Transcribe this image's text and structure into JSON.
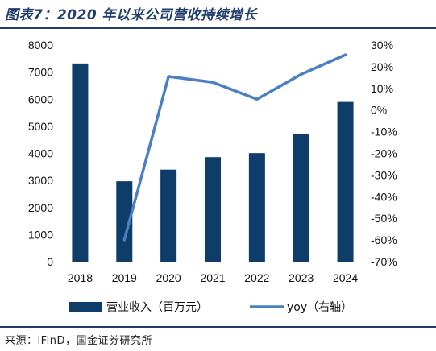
{
  "header": {
    "title": "图表7：2020 年以来公司营收持续增长"
  },
  "footer": {
    "source": "来源：iFinD，国金证券研究所"
  },
  "colors": {
    "bar": "#0e3d6a",
    "line": "#4a80c2",
    "rule": "#1f3e6b"
  },
  "chart_data": {
    "type": "bar",
    "categories": [
      "2018",
      "2019",
      "2020",
      "2021",
      "2022",
      "2023",
      "2024"
    ],
    "series": [
      {
        "name": "营业收入（百万元）",
        "type": "bar",
        "axis": "left",
        "values": [
          7320,
          2970,
          3400,
          3860,
          4010,
          4700,
          5900
        ]
      },
      {
        "name": "yoy（右轴）",
        "type": "line",
        "axis": "right",
        "values": [
          null,
          -60,
          15.5,
          12.8,
          5,
          16.5,
          25.5
        ]
      }
    ],
    "ylim": [
      0,
      8000
    ],
    "y_ticks": [
      "0",
      "1000",
      "2000",
      "3000",
      "4000",
      "5000",
      "6000",
      "7000",
      "8000"
    ],
    "y2lim": [
      -70,
      30
    ],
    "y2_ticks": [
      "-70%",
      "-60%",
      "-50%",
      "-40%",
      "-30%",
      "-20%",
      "-10%",
      "0%",
      "10%",
      "20%",
      "30%"
    ],
    "grid": false,
    "legend_position": "bottom"
  }
}
